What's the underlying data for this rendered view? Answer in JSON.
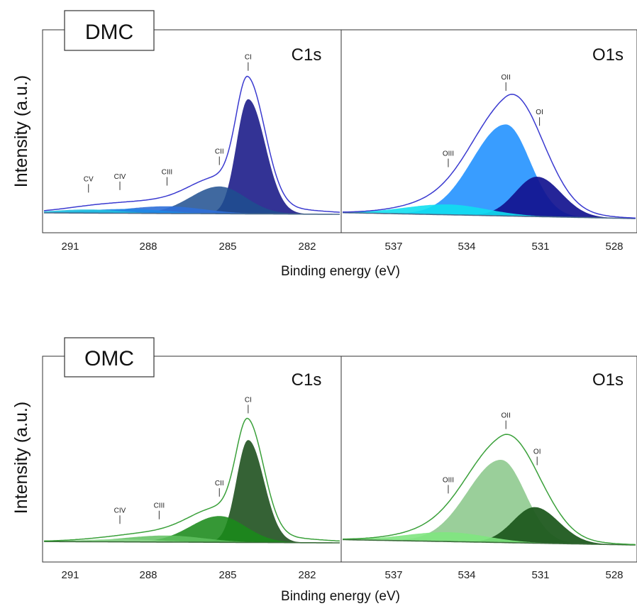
{
  "chart_data": [
    {
      "type": "area",
      "sample_label": "DMC",
      "region": "C1s",
      "ylabel": "Intensity (a.u.)",
      "xlabel": "Binding energy (eV)",
      "xlim": [
        292.2,
        280.9
      ],
      "xticks": [
        "291",
        "288",
        "285",
        "282"
      ],
      "envelope_color": "#3a3ad0",
      "background_color": "#4a6a8a",
      "peaks": [
        {
          "name": "CI",
          "center": 284.4,
          "height": 0.8,
          "wl": 0.45,
          "wr": 0.65,
          "color": "#28288f",
          "opacity": 0.95
        },
        {
          "name": "CII",
          "center": 285.5,
          "height": 0.19,
          "wl": 1.1,
          "wr": 1.0,
          "color": "#1f4f8f",
          "opacity": 0.85
        },
        {
          "name": "CIII",
          "center": 287.5,
          "height": 0.05,
          "wl": 1.6,
          "wr": 1.4,
          "color": "#2f6fd8",
          "opacity": 0.9
        },
        {
          "name": "CIV",
          "center": 289.0,
          "height": 0.03,
          "wl": 1.6,
          "wr": 1.4,
          "color": "#1e88e5",
          "opacity": 0.9
        },
        {
          "name": "CV",
          "center": 290.5,
          "height": 0.025,
          "wl": 1.3,
          "wr": 1.2,
          "color": "#22c0e0",
          "opacity": 0.9
        }
      ],
      "baseline": {
        "start": 0.01,
        "end": 0.0
      },
      "gap": 0.05,
      "peak_labels": [
        {
          "name": "CI",
          "x": 284.4
        },
        {
          "name": "CII",
          "x": 285.5
        },
        {
          "name": "CIII",
          "x": 287.5
        },
        {
          "name": "CIV",
          "x": 289.3
        },
        {
          "name": "CV",
          "x": 290.5
        }
      ]
    },
    {
      "type": "area",
      "sample_label": "",
      "region": "O1s",
      "ylabel": "",
      "xlabel": "Binding energy (eV)",
      "xlim": [
        539.2,
        527.0
      ],
      "xticks": [
        "537",
        "534",
        "531",
        "528"
      ],
      "envelope_color": "#3a3ad0",
      "background_color": "#4a6a8a",
      "peaks": [
        {
          "name": "OII",
          "center": 532.4,
          "height": 0.62,
          "wl": 1.4,
          "wr": 1.0,
          "color": "#1e90ff",
          "opacity": 0.88
        },
        {
          "name": "OI",
          "center": 531.1,
          "height": 0.27,
          "wl": 0.9,
          "wr": 1.0,
          "color": "#12128f",
          "opacity": 0.92
        },
        {
          "name": "OIII",
          "center": 534.8,
          "height": 0.07,
          "wl": 1.8,
          "wr": 1.6,
          "color": "#11dff0",
          "opacity": 0.9
        }
      ],
      "baseline": {
        "start": 0.04,
        "end": 0.0
      },
      "gap": 0.07,
      "peak_labels": [
        {
          "name": "OII",
          "x": 532.4
        },
        {
          "name": "OI",
          "x": 531.0
        },
        {
          "name": "OIII",
          "x": 534.8
        }
      ]
    },
    {
      "type": "area",
      "sample_label": "OMC",
      "region": "C1s",
      "ylabel": "Intensity (a.u.)",
      "xlabel": "Binding energy (eV)",
      "xlim": [
        292.2,
        280.9
      ],
      "xticks": [
        "291",
        "288",
        "285",
        "282"
      ],
      "envelope_color": "#3aa03a",
      "background_color": "#3a6a3a",
      "peaks": [
        {
          "name": "CI",
          "center": 284.4,
          "height": 0.78,
          "wl": 0.45,
          "wr": 0.6,
          "color": "#2a5a2a",
          "opacity": 0.95
        },
        {
          "name": "CII",
          "center": 285.5,
          "height": 0.2,
          "wl": 1.1,
          "wr": 1.0,
          "color": "#1a8a1a",
          "opacity": 0.88
        },
        {
          "name": "CIII",
          "center": 287.5,
          "height": 0.05,
          "wl": 1.6,
          "wr": 1.4,
          "color": "#5fbf5f",
          "opacity": 0.85
        },
        {
          "name": "CIV",
          "center": 289.2,
          "height": 0.02,
          "wl": 1.6,
          "wr": 1.4,
          "color": "#8fd88f",
          "opacity": 0.85
        }
      ],
      "baseline": {
        "start": 0.01,
        "end": 0.0
      },
      "gap": 0.05,
      "peak_labels": [
        {
          "name": "CI",
          "x": 284.4
        },
        {
          "name": "CII",
          "x": 285.5
        },
        {
          "name": "CIII",
          "x": 287.8
        },
        {
          "name": "CIV",
          "x": 289.3
        }
      ]
    },
    {
      "type": "area",
      "sample_label": "",
      "region": "O1s",
      "ylabel": "",
      "xlabel": "Binding energy (eV)",
      "xlim": [
        539.2,
        527.0
      ],
      "xticks": [
        "537",
        "534",
        "531",
        "528"
      ],
      "envelope_color": "#3aa03a",
      "background_color": "#3a6a3a",
      "peaks": [
        {
          "name": "OII",
          "center": 532.6,
          "height": 0.62,
          "wl": 1.4,
          "wr": 1.0,
          "color": "#8fca8f",
          "opacity": 0.9
        },
        {
          "name": "OI",
          "center": 531.2,
          "height": 0.27,
          "wl": 0.9,
          "wr": 1.0,
          "color": "#1f5a1f",
          "opacity": 0.95
        },
        {
          "name": "OIII",
          "center": 534.8,
          "height": 0.07,
          "wl": 1.8,
          "wr": 1.6,
          "color": "#7fe67f",
          "opacity": 0.9
        }
      ],
      "baseline": {
        "start": 0.04,
        "end": 0.0
      },
      "gap": 0.07,
      "peak_labels": [
        {
          "name": "OII",
          "x": 532.4
        },
        {
          "name": "OI",
          "x": 531.1
        },
        {
          "name": "OIII",
          "x": 534.8
        }
      ]
    }
  ]
}
